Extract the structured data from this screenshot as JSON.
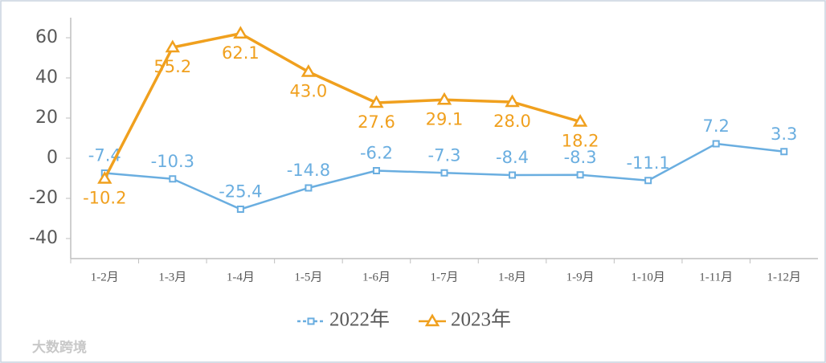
{
  "chart_data": {
    "type": "line",
    "categories": [
      "1-2月",
      "1-3月",
      "1-4月",
      "1-5月",
      "1-6月",
      "1-7月",
      "1-8月",
      "1-9月",
      "1-10月",
      "1-11月",
      "1-12月"
    ],
    "series": [
      {
        "name": "2022年",
        "color": "#6aaee0",
        "marker": "square",
        "values": [
          -7.4,
          -10.3,
          -25.4,
          -14.8,
          -6.2,
          -7.3,
          -8.4,
          -8.3,
          -11.1,
          7.2,
          3.3
        ],
        "value_labels": [
          "-7.4",
          "-10.3",
          "-25.4",
          "-14.8",
          "-6.2",
          "-7.3",
          "-8.4",
          "-8.3",
          "-11.1",
          "7.2",
          "3.3"
        ]
      },
      {
        "name": "2023年",
        "color": "#f0a01e",
        "marker": "triangle",
        "values": [
          -10.2,
          55.2,
          62.1,
          43.0,
          27.6,
          29.1,
          28.0,
          18.2,
          null,
          null,
          null
        ],
        "value_labels": [
          "-10.2",
          "55.2",
          "62.1",
          "43.0",
          "27.6",
          "29.1",
          "28.0",
          "18.2",
          null,
          null,
          null
        ]
      }
    ],
    "ylim": [
      -50,
      70
    ],
    "yticks": [
      -40,
      -20,
      0,
      20,
      40,
      60
    ],
    "grid": false,
    "legend": "bottom",
    "watermark": "大数跨境"
  }
}
